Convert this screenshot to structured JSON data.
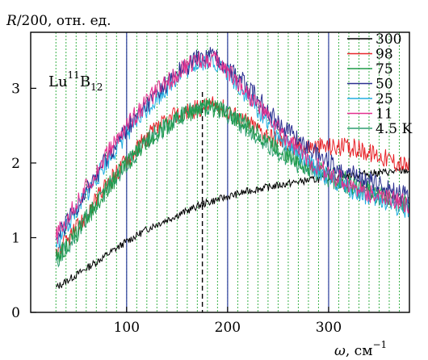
{
  "chart_data": {
    "type": "line",
    "ylabel_var": "R",
    "ylabel_rest": "/200, отн. ед.",
    "xlabel_var": "ω",
    "xlabel_rest": ", см",
    "xlabel_exp": "−1",
    "annotation": {
      "base1": "Lu",
      "sup": "11",
      "base2": "B",
      "sub": "12"
    },
    "xlim": [
      5,
      380
    ],
    "ylim": [
      0,
      3.75
    ],
    "x_ticks": [
      {
        "value": 100,
        "label": "100"
      },
      {
        "value": 200,
        "label": "200"
      },
      {
        "value": 300,
        "label": "300"
      }
    ],
    "y_ticks": [
      {
        "value": 0,
        "label": "0"
      },
      {
        "value": 1,
        "label": "1"
      },
      {
        "value": 2,
        "label": "2"
      },
      {
        "value": 3,
        "label": "3"
      }
    ],
    "x_range": [
      30,
      380
    ],
    "dashed_line_x": 175,
    "vertical_solid_lines_x": [
      100,
      200,
      300
    ],
    "green_dotted_lines_start": 30,
    "green_dotted_lines_step": 10,
    "series": [
      {
        "name": "300",
        "color": "#000000",
        "points": [
          [
            30,
            0.33
          ],
          [
            50,
            0.5
          ],
          [
            75,
            0.72
          ],
          [
            100,
            0.95
          ],
          [
            125,
            1.15
          ],
          [
            150,
            1.3
          ],
          [
            175,
            1.45
          ],
          [
            200,
            1.55
          ],
          [
            225,
            1.64
          ],
          [
            250,
            1.7
          ],
          [
            275,
            1.76
          ],
          [
            300,
            1.8
          ],
          [
            325,
            1.84
          ],
          [
            350,
            1.87
          ],
          [
            380,
            1.9
          ]
        ]
      },
      {
        "name": "98",
        "color": "#e8242a",
        "points": [
          [
            30,
            0.8
          ],
          [
            50,
            1.1
          ],
          [
            75,
            1.6
          ],
          [
            100,
            2.05
          ],
          [
            125,
            2.4
          ],
          [
            150,
            2.65
          ],
          [
            175,
            2.75
          ],
          [
            190,
            2.78
          ],
          [
            200,
            2.7
          ],
          [
            225,
            2.5
          ],
          [
            250,
            2.3
          ],
          [
            275,
            2.22
          ],
          [
            300,
            2.22
          ],
          [
            325,
            2.2
          ],
          [
            350,
            2.1
          ],
          [
            380,
            1.95
          ]
        ]
      },
      {
        "name": "75",
        "color": "#1e9a49",
        "points": [
          [
            30,
            0.72
          ],
          [
            50,
            1.05
          ],
          [
            75,
            1.55
          ],
          [
            100,
            2.0
          ],
          [
            125,
            2.35
          ],
          [
            150,
            2.6
          ],
          [
            175,
            2.75
          ],
          [
            190,
            2.73
          ],
          [
            200,
            2.68
          ],
          [
            225,
            2.45
          ],
          [
            250,
            2.2
          ],
          [
            275,
            2.0
          ],
          [
            300,
            1.85
          ],
          [
            325,
            1.72
          ],
          [
            350,
            1.6
          ],
          [
            380,
            1.45
          ]
        ]
      },
      {
        "name": "50",
        "color": "#2b2f8f",
        "points": [
          [
            30,
            0.95
          ],
          [
            50,
            1.4
          ],
          [
            75,
            1.95
          ],
          [
            100,
            2.45
          ],
          [
            125,
            2.85
          ],
          [
            150,
            3.2
          ],
          [
            170,
            3.4
          ],
          [
            185,
            3.45
          ],
          [
            200,
            3.3
          ],
          [
            225,
            2.95
          ],
          [
            250,
            2.55
          ],
          [
            275,
            2.25
          ],
          [
            300,
            2.0
          ],
          [
            325,
            1.85
          ],
          [
            350,
            1.7
          ],
          [
            380,
            1.55
          ]
        ]
      },
      {
        "name": "25",
        "color": "#22aee0",
        "points": [
          [
            30,
            0.9
          ],
          [
            50,
            1.35
          ],
          [
            75,
            1.9
          ],
          [
            100,
            2.4
          ],
          [
            125,
            2.8
          ],
          [
            150,
            3.15
          ],
          [
            170,
            3.35
          ],
          [
            185,
            3.38
          ],
          [
            200,
            3.2
          ],
          [
            225,
            2.8
          ],
          [
            250,
            2.4
          ],
          [
            275,
            2.05
          ],
          [
            300,
            1.8
          ],
          [
            325,
            1.62
          ],
          [
            350,
            1.5
          ],
          [
            380,
            1.38
          ]
        ]
      },
      {
        "name": "11",
        "color": "#e2308f",
        "points": [
          [
            30,
            1.0
          ],
          [
            50,
            1.45
          ],
          [
            75,
            2.0
          ],
          [
            100,
            2.5
          ],
          [
            125,
            2.9
          ],
          [
            150,
            3.2
          ],
          [
            170,
            3.38
          ],
          [
            185,
            3.4
          ],
          [
            200,
            3.25
          ],
          [
            225,
            2.85
          ],
          [
            250,
            2.45
          ],
          [
            275,
            2.1
          ],
          [
            300,
            1.85
          ],
          [
            325,
            1.68
          ],
          [
            350,
            1.55
          ],
          [
            380,
            1.45
          ]
        ]
      },
      {
        "name": "4.5 K",
        "color": "#2f9e72",
        "points": [
          [
            30,
            0.7
          ],
          [
            50,
            1.05
          ],
          [
            75,
            1.55
          ],
          [
            100,
            2.0
          ],
          [
            125,
            2.35
          ],
          [
            150,
            2.6
          ],
          [
            175,
            2.75
          ],
          [
            190,
            2.72
          ],
          [
            200,
            2.65
          ],
          [
            225,
            2.4
          ],
          [
            250,
            2.15
          ],
          [
            275,
            1.95
          ],
          [
            300,
            1.8
          ],
          [
            325,
            1.68
          ],
          [
            350,
            1.56
          ],
          [
            380,
            1.42
          ]
        ]
      }
    ]
  }
}
